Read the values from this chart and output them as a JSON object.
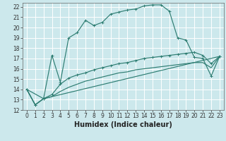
{
  "xlabel": "Humidex (Indice chaleur)",
  "bg_color": "#cce8ec",
  "grid_color": "#ffffff",
  "line_color": "#2e7d72",
  "xlim": [
    -0.5,
    23.5
  ],
  "ylim": [
    12,
    22.4
  ],
  "xticks": [
    0,
    1,
    2,
    3,
    4,
    5,
    6,
    7,
    8,
    9,
    10,
    11,
    12,
    13,
    14,
    15,
    16,
    17,
    18,
    19,
    20,
    21,
    22,
    23
  ],
  "yticks": [
    12,
    13,
    14,
    15,
    16,
    17,
    18,
    19,
    20,
    21,
    22
  ],
  "line1_x": [
    0,
    1,
    2,
    3,
    4,
    5,
    6,
    7,
    8,
    9,
    10,
    11,
    12,
    13,
    14,
    15,
    16,
    17,
    18,
    19,
    20,
    21,
    22,
    23
  ],
  "line1_y": [
    14.0,
    12.5,
    13.1,
    17.3,
    14.7,
    19.0,
    19.5,
    20.7,
    20.2,
    20.5,
    21.3,
    21.5,
    21.7,
    21.8,
    22.1,
    22.2,
    22.2,
    21.6,
    19.0,
    18.8,
    17.1,
    17.0,
    15.3,
    17.2
  ],
  "line2_x": [
    0,
    1,
    2,
    3,
    4,
    5,
    6,
    7,
    8,
    9,
    10,
    11,
    12,
    13,
    14,
    15,
    16,
    17,
    18,
    19,
    20,
    21,
    22,
    23
  ],
  "line2_y": [
    14.0,
    12.5,
    13.1,
    13.5,
    14.5,
    15.1,
    15.4,
    15.6,
    15.9,
    16.1,
    16.3,
    16.5,
    16.6,
    16.8,
    17.0,
    17.1,
    17.2,
    17.3,
    17.4,
    17.5,
    17.6,
    17.3,
    16.5,
    17.2
  ],
  "line3_x": [
    0,
    1,
    2,
    3,
    4,
    5,
    6,
    7,
    8,
    9,
    10,
    11,
    12,
    13,
    14,
    15,
    16,
    17,
    18,
    19,
    20,
    21,
    22,
    23
  ],
  "line3_y": [
    14.0,
    12.5,
    13.1,
    13.3,
    13.8,
    14.2,
    14.5,
    14.8,
    15.0,
    15.2,
    15.4,
    15.6,
    15.7,
    15.9,
    16.0,
    16.1,
    16.2,
    16.3,
    16.4,
    16.5,
    16.6,
    16.6,
    16.1,
    17.2
  ],
  "line4_x": [
    0,
    2,
    23
  ],
  "line4_y": [
    14.0,
    13.1,
    17.2
  ],
  "xlabel_fontsize": 7,
  "tick_fontsize": 5.5
}
